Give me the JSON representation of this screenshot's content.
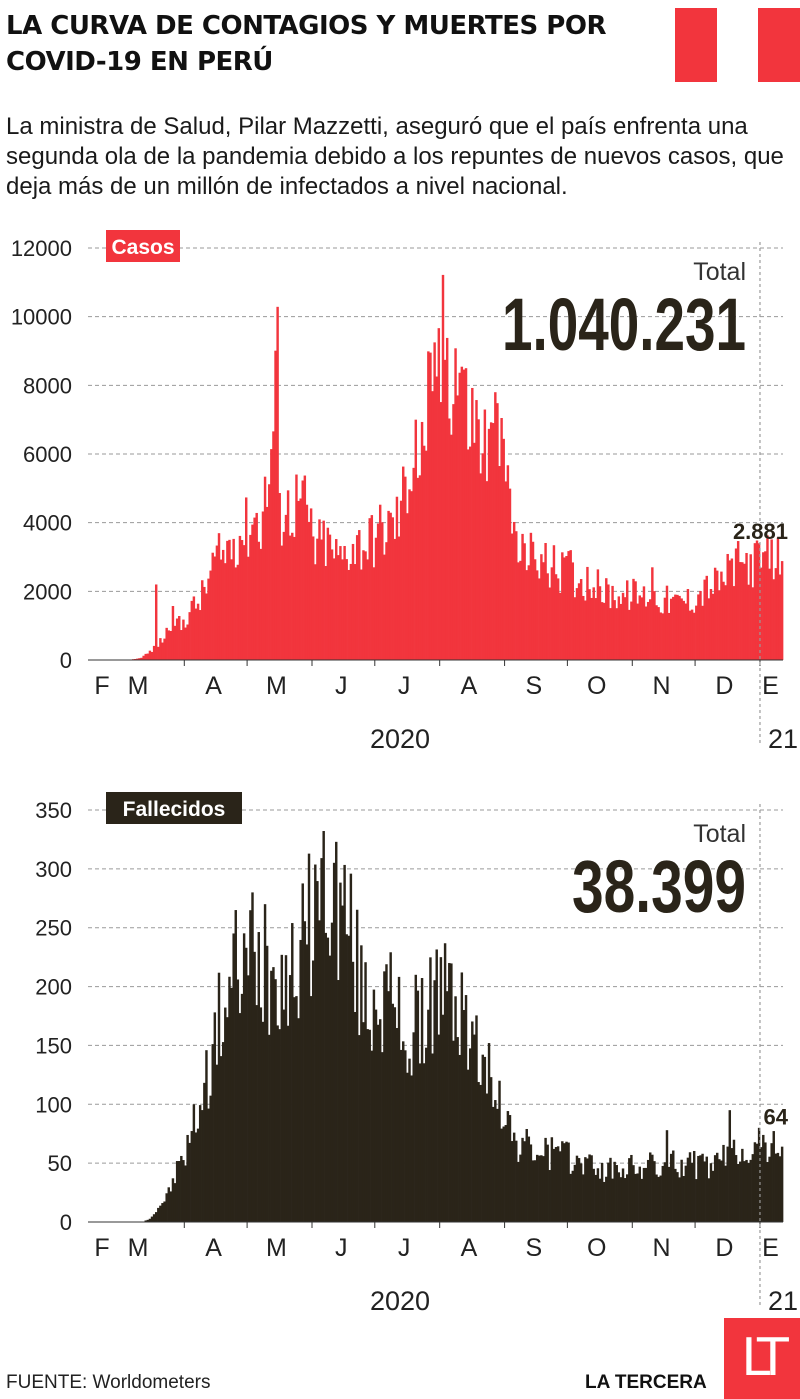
{
  "header": {
    "title": "LA CURVA DE CONTAGIOS Y MUERTES POR COVID-19 EN PERÚ",
    "intro": "La ministra de Salud, Pilar Mazzetti, aseguró que el país enfrenta una segunda ola de la pandemia debido a los repuntes de nuevos casos, que deja más de un millón de infectados a nivel nacional.",
    "flag_colors": [
      "#f2353d",
      "#ffffff",
      "#f2353d"
    ]
  },
  "footer": {
    "source": "FUENTE: Worldometers",
    "brand": "LA TERCERA",
    "logo_text": "LT"
  },
  "colors": {
    "cases": "#f2353d",
    "deaths": "#2a2419",
    "grid": "#9a9a9a"
  },
  "chart_data": [
    {
      "type": "bar",
      "badge": "Casos",
      "ylim": [
        0,
        12000
      ],
      "yticks": [
        "0",
        "2000",
        "4000",
        "6000",
        "8000",
        "10000",
        "12000"
      ],
      "months": [
        "F",
        "M",
        "A",
        "M",
        "J",
        "J",
        "A",
        "S",
        "O",
        "N",
        "D",
        "E"
      ],
      "year_labels": [
        "2020",
        "21"
      ],
      "total_caption": "Total",
      "total_value": "1.040.231",
      "last_value_label": "2.881",
      "grid": true,
      "series": [
        {
          "x_start": "2020-02-15",
          "x_end": "2021-01-11",
          "anchors": [
            [
              0,
              0
            ],
            [
              18,
              0
            ],
            [
              24,
              50
            ],
            [
              28,
              200
            ],
            [
              32,
              400
            ],
            [
              36,
              700
            ],
            [
              40,
              1300
            ],
            [
              44,
              1000
            ],
            [
              48,
              1500
            ],
            [
              52,
              1700
            ],
            [
              56,
              2200
            ],
            [
              60,
              3000
            ],
            [
              64,
              3100
            ],
            [
              68,
              3600
            ],
            [
              72,
              3800
            ],
            [
              76,
              4000
            ],
            [
              78,
              4300
            ],
            [
              82,
              4200
            ],
            [
              86,
              5500
            ],
            [
              88,
              7000
            ],
            [
              90,
              8800
            ],
            [
              92,
              4200
            ],
            [
              96,
              4600
            ],
            [
              100,
              4800
            ],
            [
              104,
              4500
            ],
            [
              108,
              3300
            ],
            [
              112,
              3600
            ],
            [
              116,
              3300
            ],
            [
              120,
              3000
            ],
            [
              124,
              3400
            ],
            [
              128,
              3500
            ],
            [
              132,
              3500
            ],
            [
              136,
              3700
            ],
            [
              140,
              3900
            ],
            [
              144,
              4000
            ],
            [
              148,
              4300
            ],
            [
              152,
              5500
            ],
            [
              156,
              6800
            ],
            [
              158,
              5500
            ],
            [
              162,
              8000
            ],
            [
              164,
              7000
            ],
            [
              166,
              9400
            ],
            [
              168,
              8800
            ],
            [
              170,
              10100
            ],
            [
              172,
              8500
            ],
            [
              174,
              9300
            ],
            [
              176,
              8700
            ],
            [
              178,
              9100
            ],
            [
              180,
              7500
            ],
            [
              184,
              7200
            ],
            [
              188,
              6600
            ],
            [
              192,
              6200
            ],
            [
              196,
              6200
            ],
            [
              200,
              5500
            ],
            [
              204,
              3300
            ],
            [
              208,
              3000
            ],
            [
              212,
              3200
            ],
            [
              216,
              3000
            ],
            [
              220,
              2800
            ],
            [
              224,
              2700
            ],
            [
              228,
              2700
            ],
            [
              232,
              2500
            ],
            [
              236,
              2400
            ],
            [
              240,
              2400
            ],
            [
              244,
              2100
            ],
            [
              248,
              2000
            ],
            [
              252,
              2000
            ],
            [
              256,
              1900
            ],
            [
              260,
              2000
            ],
            [
              264,
              1900
            ],
            [
              268,
              2000
            ],
            [
              272,
              1800
            ],
            [
              276,
              1800
            ],
            [
              280,
              1700
            ],
            [
              284,
              1800
            ],
            [
              288,
              1800
            ],
            [
              292,
              2000
            ],
            [
              296,
              2200
            ],
            [
              300,
              2300
            ],
            [
              304,
              2500
            ],
            [
              308,
              2800
            ],
            [
              311,
              2881
            ]
          ],
          "spikes": [
            [
              32,
              2200
            ],
            [
              156,
              7000
            ],
            [
              194,
              7800
            ],
            [
              208,
              3400
            ],
            [
              230,
              3200
            ],
            [
              269,
              2700
            ],
            [
              306,
              2900
            ]
          ],
          "last_value": 2881
        }
      ]
    },
    {
      "type": "bar",
      "badge": "Fallecidos",
      "ylim": [
        0,
        350
      ],
      "yticks": [
        "0",
        "50",
        "100",
        "150",
        "200",
        "250",
        "300",
        "350"
      ],
      "months": [
        "F",
        "M",
        "A",
        "M",
        "J",
        "J",
        "A",
        "S",
        "O",
        "N",
        "D",
        "E"
      ],
      "year_labels": [
        "2020",
        "21"
      ],
      "total_caption": "Total",
      "total_value": "38.399",
      "last_value_label": "64",
      "grid": true,
      "series": [
        {
          "x_start": "2020-02-15",
          "x_end": "2021-01-11",
          "anchors": [
            [
              0,
              0
            ],
            [
              26,
              0
            ],
            [
              30,
              5
            ],
            [
              34,
              15
            ],
            [
              38,
              25
            ],
            [
              42,
              45
            ],
            [
              46,
              60
            ],
            [
              50,
              85
            ],
            [
              54,
              110
            ],
            [
              58,
              140
            ],
            [
              62,
              175
            ],
            [
              66,
              195
            ],
            [
              70,
              215
            ],
            [
              74,
              220
            ],
            [
              78,
              230
            ],
            [
              82,
              225
            ],
            [
              86,
              220
            ],
            [
              90,
              230
            ],
            [
              94,
              215
            ],
            [
              98,
              220
            ],
            [
              102,
              240
            ],
            [
              106,
              265
            ],
            [
              110,
              290
            ],
            [
              114,
              295
            ],
            [
              118,
              280
            ],
            [
              122,
              275
            ],
            [
              126,
              240
            ],
            [
              130,
              200
            ],
            [
              134,
              190
            ],
            [
              138,
              200
            ],
            [
              142,
              195
            ],
            [
              146,
              185
            ],
            [
              150,
              170
            ],
            [
              154,
              150
            ],
            [
              158,
              165
            ],
            [
              162,
              190
            ],
            [
              166,
              205
            ],
            [
              170,
              200
            ],
            [
              174,
              190
            ],
            [
              178,
              175
            ],
            [
              182,
              160
            ],
            [
              186,
              145
            ],
            [
              190,
              130
            ],
            [
              194,
              120
            ],
            [
              198,
              100
            ],
            [
              202,
              75
            ],
            [
              206,
              68
            ],
            [
              210,
              65
            ],
            [
              214,
              62
            ],
            [
              218,
              60
            ],
            [
              222,
              58
            ],
            [
              226,
              58
            ],
            [
              230,
              55
            ],
            [
              234,
              54
            ],
            [
              238,
              52
            ],
            [
              242,
              48
            ],
            [
              246,
              45
            ],
            [
              250,
              45
            ],
            [
              254,
              48
            ],
            [
              258,
              47
            ],
            [
              262,
              48
            ],
            [
              266,
              48
            ],
            [
              270,
              50
            ],
            [
              274,
              48
            ],
            [
              278,
              50
            ],
            [
              282,
              52
            ],
            [
              286,
              52
            ],
            [
              290,
              50
            ],
            [
              294,
              48
            ],
            [
              298,
              50
            ],
            [
              302,
              52
            ],
            [
              306,
              60
            ],
            [
              311,
              64
            ]
          ],
          "spikes": [
            [
              70,
              265
            ],
            [
              78,
              280
            ],
            [
              84,
              270
            ],
            [
              156,
              210
            ],
            [
              168,
              225
            ],
            [
              172,
              220
            ],
            [
              178,
              212
            ],
            [
              196,
              120
            ],
            [
              221,
              72
            ],
            [
              276,
              78
            ],
            [
              306,
              95
            ]
          ],
          "last_value": 64
        }
      ]
    }
  ]
}
